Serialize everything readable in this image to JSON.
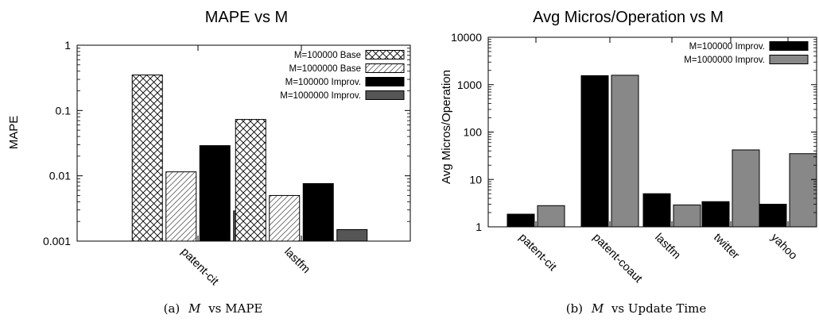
{
  "chart_data": [
    {
      "type": "bar",
      "scale": "log",
      "title": "MAPE vs M",
      "ylabel": "MAPE",
      "xlabel": "",
      "ylim": [
        0.001,
        1
      ],
      "yticks": [
        "0.001",
        "0.01",
        "0.1",
        "1"
      ],
      "categories": [
        "patent-cit",
        "lastfm"
      ],
      "legend_position": "top-right",
      "series": [
        {
          "name": "M=100000 Base",
          "values": [
            0.35,
            0.073
          ],
          "color": "#ffffff",
          "pattern": "crosshatch"
        },
        {
          "name": "M=1000000 Base",
          "values": [
            0.0115,
            0.005
          ],
          "color": "#ffffff",
          "pattern": "diagonal"
        },
        {
          "name": "M=100000 Improv.",
          "values": [
            0.029,
            0.0076
          ],
          "color": "#000000",
          "pattern": "solid"
        },
        {
          "name": "M=1000000 Improv.",
          "values": [
            0.0029,
            0.0015
          ],
          "color": "#555555",
          "pattern": "solid"
        }
      ],
      "caption": {
        "label": "(a)",
        "var": "M",
        "rest": "vs MAPE"
      }
    },
    {
      "type": "bar",
      "scale": "log",
      "title": "Avg Micros/Operation vs M",
      "ylabel": "Avg Micros/Operation",
      "xlabel": "",
      "ylim": [
        1,
        10000
      ],
      "yticks": [
        "1",
        "10",
        "100",
        "1000",
        "10000"
      ],
      "categories": [
        "patent-cit",
        "patent-coaut",
        "lastfm",
        "twitter",
        "yahoo"
      ],
      "legend_position": "top-right",
      "series": [
        {
          "name": "M=100000 Improv.",
          "values": [
            1.85,
            1550,
            5.0,
            3.4,
            3.0
          ],
          "color": "#000000",
          "pattern": "solid"
        },
        {
          "name": "M=1000000 Improv.",
          "values": [
            2.8,
            1580,
            2.9,
            42,
            35
          ],
          "color": "#888888",
          "pattern": "solid"
        }
      ],
      "caption": {
        "label": "(b)",
        "var": "M",
        "rest": "vs Update Time"
      }
    }
  ]
}
